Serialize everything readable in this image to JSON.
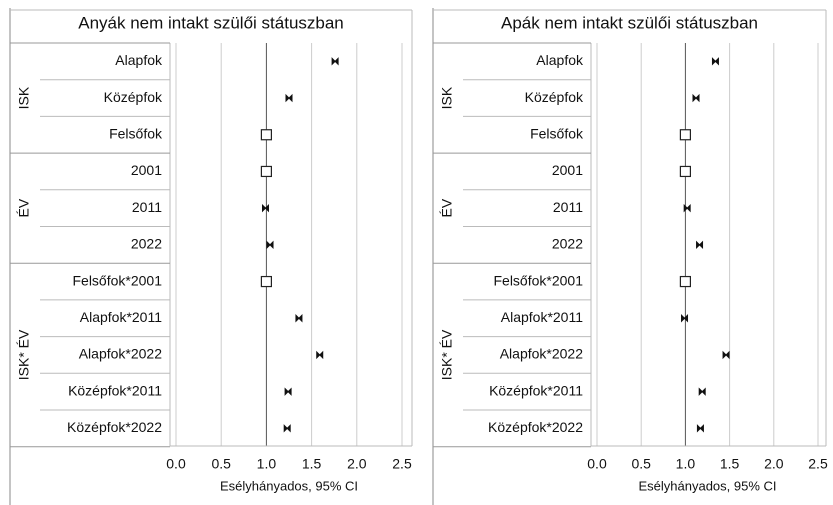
{
  "chart_data": [
    {
      "type": "forest",
      "title": "Anyák nem intakt szülői státuszban",
      "xlabel": "Esélyhányados, 95% CI",
      "xlim": [
        0,
        2.5
      ],
      "xticks": [
        {
          "value": 0,
          "label": "0.0"
        },
        {
          "value": 0.5,
          "label": "0.5"
        },
        {
          "value": 1,
          "label": "1.0"
        },
        {
          "value": 1.5,
          "label": "1.5"
        },
        {
          "value": 2,
          "label": "2.0"
        },
        {
          "value": 2.5,
          "label": "2.5"
        }
      ],
      "reference_line": 1,
      "grid": true,
      "groups": [
        {
          "label": "ISK",
          "categories": [
            "Alapfok",
            "Középfok",
            "Felsőfok"
          ],
          "values": [
            1.76,
            1.25,
            1
          ],
          "reference": [
            false,
            false,
            true
          ]
        },
        {
          "label": "ÉV",
          "categories": [
            "2001",
            "2011",
            "2022"
          ],
          "values": [
            1,
            0.99,
            1.04
          ],
          "reference": [
            true,
            false,
            false
          ]
        },
        {
          "label": "ISK* ÉV",
          "categories": [
            "Felsőfok*2001",
            "Alapfok*2011",
            "Alapfok*2022",
            "Középfok*2011",
            "Középfok*2022"
          ],
          "values": [
            1,
            1.36,
            1.59,
            1.24,
            1.23
          ],
          "reference": [
            true,
            false,
            false,
            false,
            false
          ]
        }
      ]
    },
    {
      "type": "forest",
      "title": "Apák nem intakt szülői státuszban",
      "xlabel": "Esélyhányados, 95% CI",
      "xlim": [
        0,
        2.5
      ],
      "xticks": [
        {
          "value": 0,
          "label": "0.0"
        },
        {
          "value": 0.5,
          "label": "0.5"
        },
        {
          "value": 1,
          "label": "1.0"
        },
        {
          "value": 1.5,
          "label": "1.5"
        },
        {
          "value": 2,
          "label": "2.0"
        },
        {
          "value": 2.5,
          "label": "2.5"
        }
      ],
      "reference_line": 1,
      "grid": true,
      "groups": [
        {
          "label": "ISK",
          "categories": [
            "Alapfok",
            "Középfok",
            "Felsőfok"
          ],
          "values": [
            1.34,
            1.12,
            1
          ],
          "reference": [
            false,
            false,
            true
          ]
        },
        {
          "label": "ÉV",
          "categories": [
            "2001",
            "2011",
            "2022"
          ],
          "values": [
            1,
            1.02,
            1.16
          ],
          "reference": [
            true,
            false,
            false
          ]
        },
        {
          "label": "ISK* ÉV",
          "categories": [
            "Felsőfok*2001",
            "Alapfok*2011",
            "Alapfok*2022",
            "Középfok*2011",
            "Középfok*2022"
          ],
          "values": [
            1,
            0.99,
            1.46,
            1.19,
            1.17
          ],
          "reference": [
            true,
            false,
            false,
            false,
            false
          ]
        }
      ]
    }
  ]
}
